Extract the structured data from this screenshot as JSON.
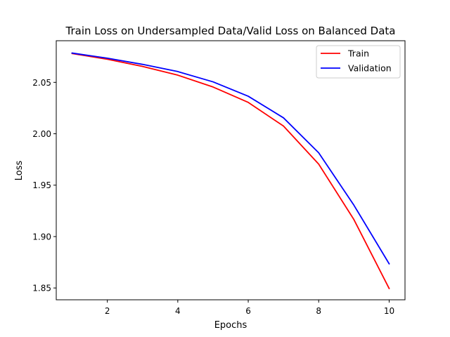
{
  "chart_data": {
    "type": "line",
    "title": "Train Loss on Undersampled Data/Valid Loss on Balanced Data",
    "xlabel": "Epochs",
    "ylabel": "Loss",
    "xlim": [
      0.55,
      10.45
    ],
    "ylim": [
      1.8385,
      2.0905
    ],
    "xticks": [
      2,
      4,
      6,
      8,
      10
    ],
    "xtick_labels": [
      "2",
      "4",
      "6",
      "8",
      "10"
    ],
    "yticks": [
      1.85,
      1.9,
      1.95,
      2.0,
      2.05
    ],
    "ytick_labels": [
      "1.85",
      "1.90",
      "1.95",
      "2.00",
      "2.05"
    ],
    "grid": false,
    "legend_position": "upper-right",
    "x": [
      1,
      2,
      3,
      4,
      5,
      6,
      7,
      8,
      9,
      10
    ],
    "series": [
      {
        "name": "Train",
        "color": "#ff0000",
        "values": [
          2.078,
          2.0725,
          2.0655,
          2.057,
          2.0455,
          2.0305,
          2.0075,
          1.9705,
          1.9165,
          1.8495
        ]
      },
      {
        "name": "Validation",
        "color": "#0000ff",
        "values": [
          2.0785,
          2.0735,
          2.0675,
          2.0605,
          2.0505,
          2.0365,
          2.0155,
          1.9815,
          1.9305,
          1.8735
        ]
      }
    ]
  }
}
